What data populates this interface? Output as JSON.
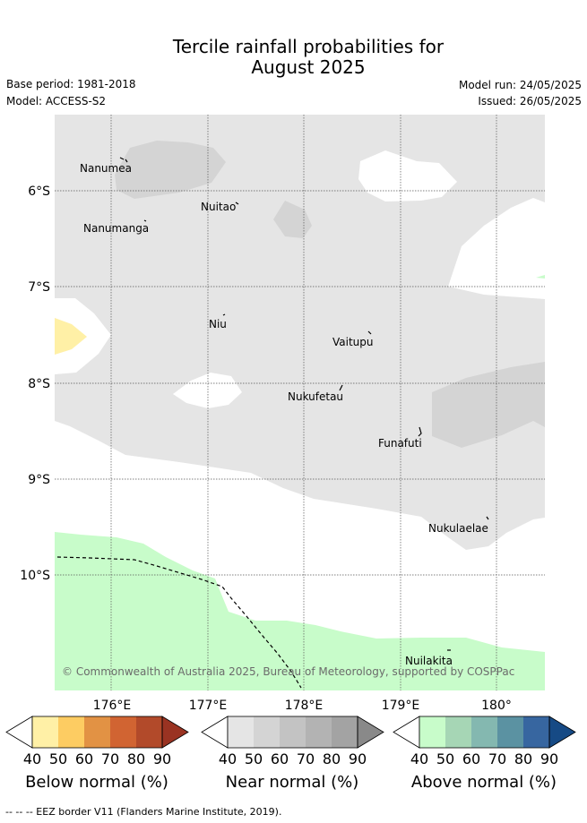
{
  "title_line1": "Tercile rainfall probabilities for",
  "title_line2": "August 2025",
  "base_period": "Base period: 1981-2018",
  "model": "Model: ACCESS-S2",
  "model_run": "Model run: 24/05/2025",
  "issued": "Issued: 26/05/2025",
  "map": {
    "lat_ticks": [
      "6°S",
      "7°S",
      "8°S",
      "9°S",
      "10°S"
    ],
    "lon_ticks": [
      "176°E",
      "177°E",
      "178°E",
      "179°E",
      "180°"
    ],
    "islands": [
      "Nanumea",
      "Nuitao",
      "Nanumanga",
      "Niu",
      "Vaitupu",
      "Nukufetau",
      "Funafuti",
      "Nukulaelae",
      "Nuilakita"
    ],
    "copyright": "© Commonwealth of Australia 2025, Bureau of Meteorology, supported by COSPPac",
    "colors": {
      "near_normal_40": "#e5e5e5",
      "near_normal_50": "#d4d4d4",
      "below_normal_40": "#fff0a6",
      "above_normal_40": "#c8fcca"
    }
  },
  "colorbars": [
    {
      "label": "Below normal (%)",
      "ticks": [
        "40",
        "50",
        "60",
        "70",
        "80",
        "90"
      ],
      "colors": [
        "#fff0a6",
        "#fdcc62",
        "#e29244",
        "#d16432",
        "#b24a2a",
        "#9a3322"
      ]
    },
    {
      "label": "Near normal (%)",
      "ticks": [
        "40",
        "50",
        "60",
        "70",
        "80",
        "90"
      ],
      "colors": [
        "#e5e5e5",
        "#d4d4d4",
        "#c3c3c3",
        "#b3b3b3",
        "#a3a3a3",
        "#898989"
      ]
    },
    {
      "label": "Above normal (%)",
      "ticks": [
        "40",
        "50",
        "60",
        "70",
        "80",
        "90"
      ],
      "colors": [
        "#c8fcca",
        "#a6d6b5",
        "#84b8b0",
        "#5b92a2",
        "#3766a0",
        "#164a85"
      ]
    }
  ],
  "footer": "-- -- -- EEZ border V11 (Flanders Marine Institute, 2019)."
}
